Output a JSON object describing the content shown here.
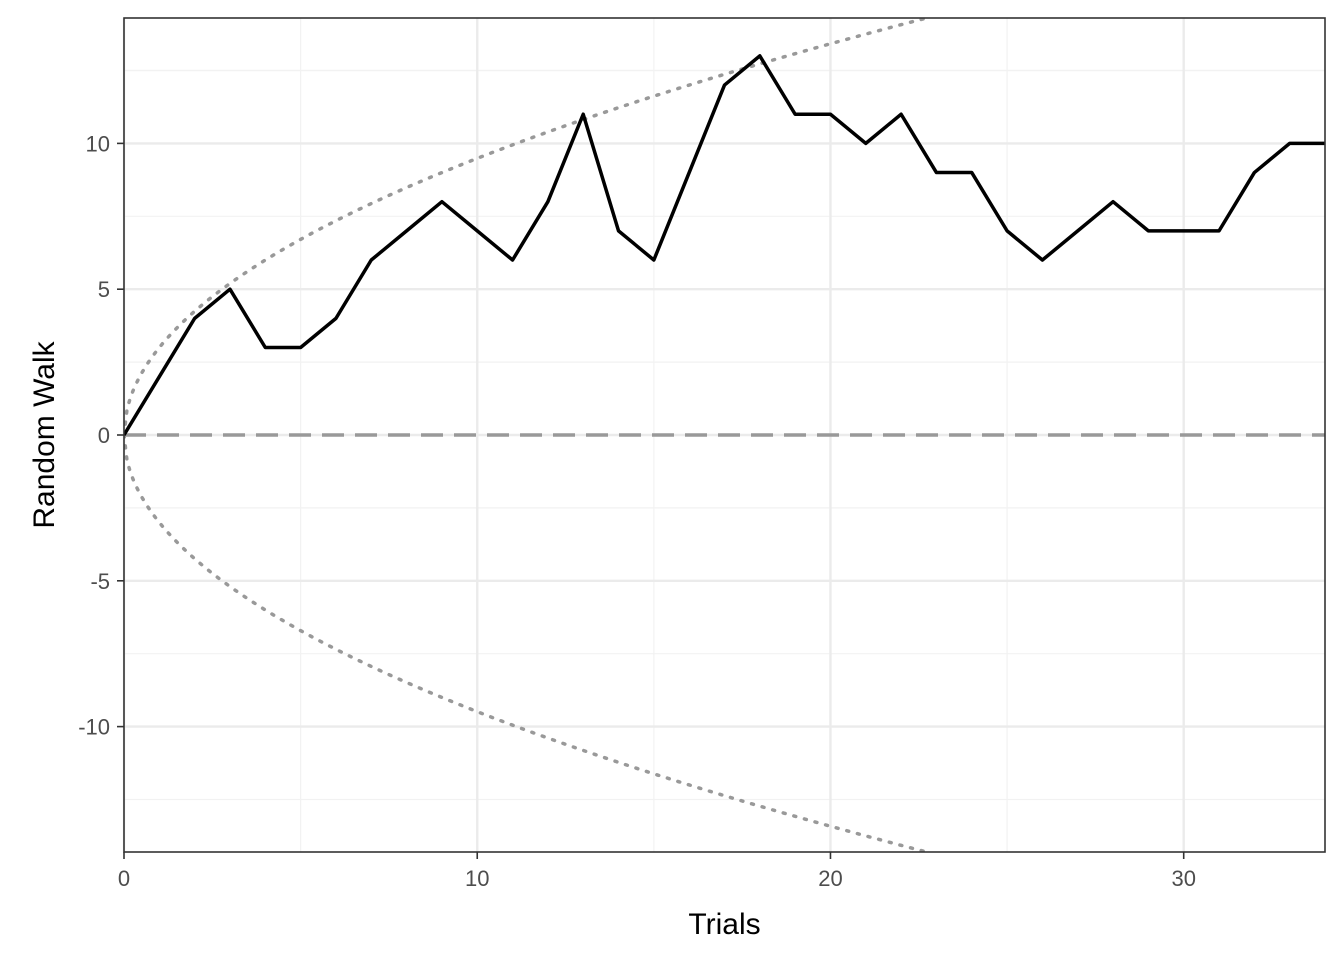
{
  "chart_data": {
    "type": "line",
    "xlabel": "Trials",
    "ylabel": "Random Walk",
    "xlim": [
      0,
      34
    ],
    "ylim": [
      -14.3,
      14.3
    ],
    "x_ticks": [
      0,
      10,
      20,
      30
    ],
    "y_ticks": [
      -10,
      -5,
      0,
      5,
      10
    ],
    "x_tick_labels": [
      "0",
      "10",
      "20",
      "30"
    ],
    "y_tick_labels": [
      "-10",
      "-5",
      "0",
      "5",
      "10"
    ],
    "grid": true,
    "theme": "bw",
    "series": [
      {
        "style": "solid",
        "color": "#000000",
        "x": [
          0,
          1,
          2,
          3,
          4,
          5,
          6,
          7,
          8,
          9,
          10,
          11,
          12,
          13,
          14,
          15,
          16,
          17,
          18,
          19,
          20,
          21,
          22,
          23,
          24,
          25,
          26,
          27,
          28,
          29,
          30,
          31,
          32,
          33,
          34
        ],
        "y": [
          0,
          2,
          4,
          5,
          3,
          3,
          4,
          6,
          7,
          8,
          7,
          6,
          8,
          11,
          7,
          6,
          9,
          12,
          13,
          11,
          11,
          10,
          11,
          9,
          9,
          7,
          6,
          7,
          8,
          7,
          7,
          7,
          9,
          10,
          10
        ]
      }
    ],
    "reference_lines": [
      {
        "kind": "horizontal",
        "y": 0,
        "style": "dashed",
        "color": "#999999"
      },
      {
        "kind": "curve",
        "function": "+3*sqrt(x)",
        "style": "dotted",
        "color": "#999999"
      },
      {
        "kind": "curve",
        "function": "-3*sqrt(x)",
        "style": "dotted",
        "color": "#999999"
      }
    ]
  }
}
